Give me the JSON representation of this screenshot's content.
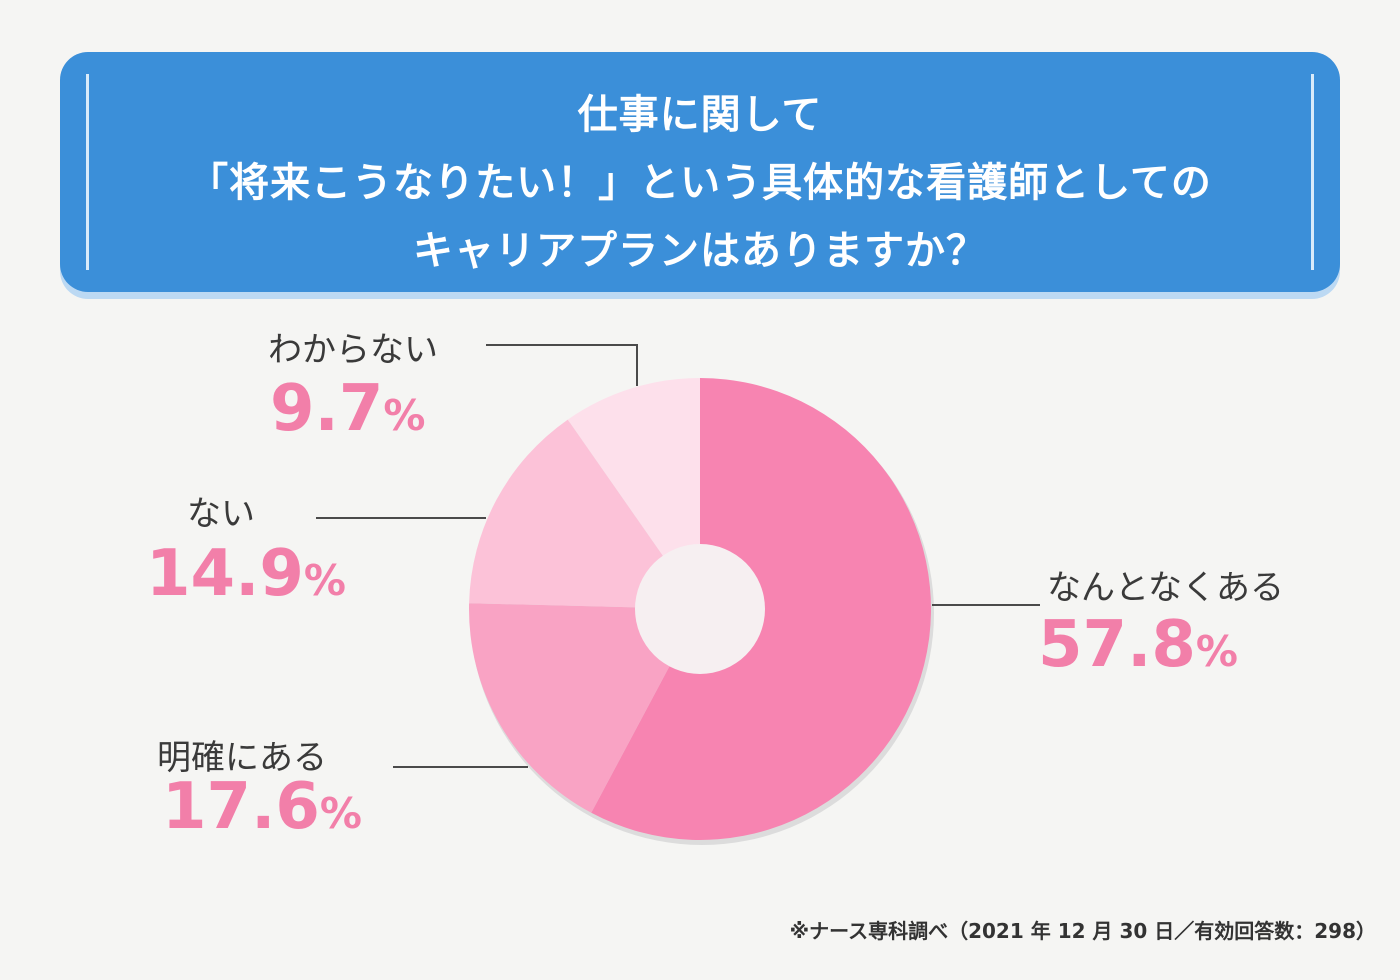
{
  "header": {
    "line1": "仕事に関して",
    "line2": "「将来こうなりたい！」という具体的な看護師としての",
    "line3": "キャリアプランはありますか？"
  },
  "chart_data": {
    "type": "pie",
    "donut": true,
    "slices": [
      {
        "label": "なんとなくある",
        "value": 57.8,
        "color": "#f784b1"
      },
      {
        "label": "明確にある",
        "value": 17.6,
        "color": "#f9a3c4"
      },
      {
        "label": "ない",
        "value": 14.9,
        "color": "#fcc2d8"
      },
      {
        "label": "わからない",
        "value": 9.7,
        "color": "#fde0eb"
      }
    ],
    "start": "12 o'clock",
    "direction": "clockwise"
  },
  "labels": {
    "nantonaku": {
      "text": "なんとなくある",
      "value": "57.8",
      "unit": "%"
    },
    "meikaku": {
      "text": "明確にある",
      "value": "17.6",
      "unit": "%"
    },
    "nai": {
      "text": "ない",
      "value": "14.9",
      "unit": "%"
    },
    "wakaranai": {
      "text": "わからない",
      "value": "9.7",
      "unit": "%"
    }
  },
  "footer": {
    "source": "※ナース専科調べ（2021 年 12 月 30 日／有効回答数：298）"
  }
}
